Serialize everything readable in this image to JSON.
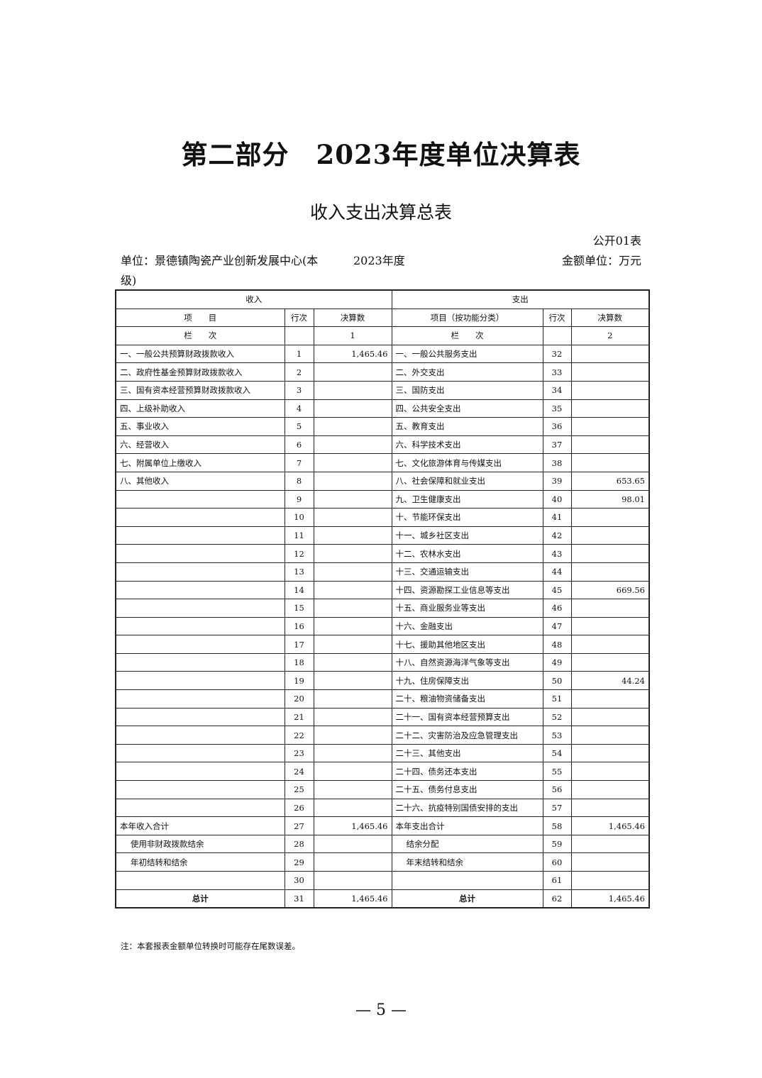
{
  "title": "第二部分　2023年度单位决算表",
  "subtitle": "收入支出决算总表",
  "table_no": "公开01表",
  "unit": "单位：景德镇陶瓷产业创新发展中心(本级)",
  "year": "2023年度",
  "money_unit": "金额单位：万元",
  "header": {
    "income": "收入",
    "expense": "支出",
    "item": "项　　目",
    "row_no": "行次",
    "amount": "决算数",
    "exp_item": "项目（按功能分类）",
    "column_label": "栏　　次",
    "col1": "1",
    "col2": "2"
  },
  "rows": [
    [
      "一、一般公共预算财政拨款收入",
      "1",
      "1,465.46",
      "一、一般公共服务支出",
      "32",
      ""
    ],
    [
      "二、政府性基金预算财政拨款收入",
      "2",
      "",
      "二、外交支出",
      "33",
      ""
    ],
    [
      "三、国有资本经营预算财政拨款收入",
      "3",
      "",
      "三、国防支出",
      "34",
      ""
    ],
    [
      "四、上级补助收入",
      "4",
      "",
      "四、公共安全支出",
      "35",
      ""
    ],
    [
      "五、事业收入",
      "5",
      "",
      "五、教育支出",
      "36",
      ""
    ],
    [
      "六、经营收入",
      "6",
      "",
      "六、科学技术支出",
      "37",
      ""
    ],
    [
      "七、附属单位上缴收入",
      "7",
      "",
      "七、文化旅游体育与传媒支出",
      "38",
      ""
    ],
    [
      "八、其他收入",
      "8",
      "",
      "八、社会保障和就业支出",
      "39",
      "653.65"
    ],
    [
      "",
      "9",
      "",
      "九、卫生健康支出",
      "40",
      "98.01"
    ],
    [
      "",
      "10",
      "",
      "十、节能环保支出",
      "41",
      ""
    ],
    [
      "",
      "11",
      "",
      "十一、城乡社区支出",
      "42",
      ""
    ],
    [
      "",
      "12",
      "",
      "十二、农林水支出",
      "43",
      ""
    ],
    [
      "",
      "13",
      "",
      "十三、交通运输支出",
      "44",
      ""
    ],
    [
      "",
      "14",
      "",
      "十四、资源勘探工业信息等支出",
      "45",
      "669.56"
    ],
    [
      "",
      "15",
      "",
      "十五、商业服务业等支出",
      "46",
      ""
    ],
    [
      "",
      "16",
      "",
      "十六、金融支出",
      "47",
      ""
    ],
    [
      "",
      "17",
      "",
      "十七、援助其他地区支出",
      "48",
      ""
    ],
    [
      "",
      "18",
      "",
      "十八、自然资源海洋气象等支出",
      "49",
      ""
    ],
    [
      "",
      "19",
      "",
      "十九、住房保障支出",
      "50",
      "44.24"
    ],
    [
      "",
      "20",
      "",
      "二十、粮油物资储备支出",
      "51",
      ""
    ],
    [
      "",
      "21",
      "",
      "二十一、国有资本经营预算支出",
      "52",
      ""
    ],
    [
      "",
      "22",
      "",
      "二十二、灾害防治及应急管理支出",
      "53",
      ""
    ],
    [
      "",
      "23",
      "",
      "二十三、其他支出",
      "54",
      ""
    ],
    [
      "",
      "24",
      "",
      "二十四、债务还本支出",
      "55",
      ""
    ],
    [
      "",
      "25",
      "",
      "二十五、债务付息支出",
      "56",
      ""
    ],
    [
      "",
      "26",
      "",
      "二十六、抗疫特别国债安排的支出",
      "57",
      ""
    ],
    [
      "本年收入合计",
      "27",
      "1,465.46",
      "本年支出合计",
      "58",
      "1,465.46"
    ],
    [
      "使用非财政拨款结余",
      "28",
      "",
      "结余分配",
      "59",
      ""
    ],
    [
      "年初结转和结余",
      "29",
      "",
      "年末结转和结余",
      "60",
      ""
    ],
    [
      "",
      "30",
      "",
      "",
      "61",
      ""
    ]
  ],
  "total": [
    "总计",
    "31",
    "1,465.46",
    "总计",
    "62",
    "1,465.46"
  ],
  "note": "注：本套报表金额单位转换时可能存在尾数误差。",
  "page_number": "— 5 —"
}
